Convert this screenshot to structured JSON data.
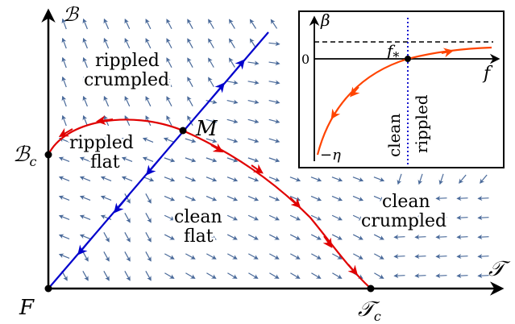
{
  "main": {
    "axis_x_label": "𝒯",
    "axis_y_label": "ℬ",
    "point_F": "F",
    "point_M": "M",
    "point_Bc": "ℬ",
    "point_Bc_sub": "c",
    "point_Tc": "𝒯",
    "point_Tc_sub": "c",
    "regions": {
      "rippled_crumpled_1": "rippled",
      "rippled_crumpled_2": "crumpled",
      "rippled_flat_1": "rippled",
      "rippled_flat_2": "flat",
      "clean_flat_1": "clean",
      "clean_flat_2": "flat",
      "clean_crumpled_1": "clean",
      "clean_crumpled_2": "crumpled"
    }
  },
  "inset": {
    "beta_label": "β",
    "f_label": "f",
    "fstar_label": "f",
    "fstar_sub": "*",
    "zero_label": "0",
    "neg_eta_label": "−η",
    "clean_label": "clean",
    "rippled_label": "rippled"
  },
  "colors": {
    "flow_arrows": "#4a6a9a",
    "separatrix": "#e00000",
    "unstable_line": "#0000cc",
    "inset_curve": "#ff4400",
    "inset_dotted": "#0000cc"
  }
}
